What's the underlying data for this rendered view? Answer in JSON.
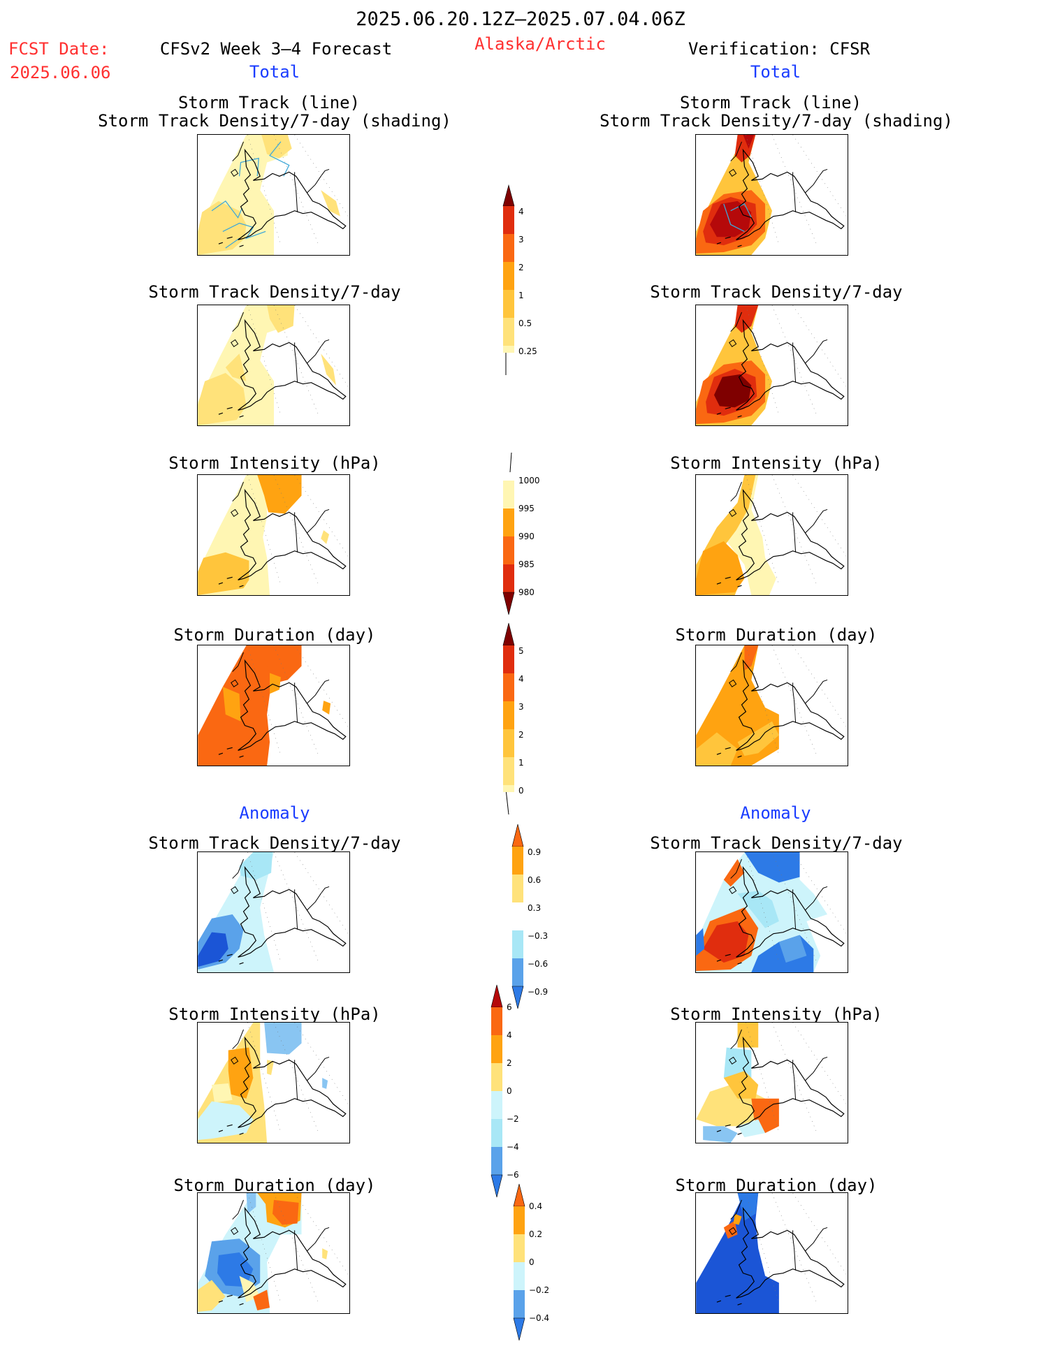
{
  "header": {
    "period": "2025.06.20.12Z–2025.07.04.06Z",
    "fcst_label": "FCST Date:",
    "fcst_date": "2025.06.06",
    "model": "CFSv2 Week 3–4 Forecast",
    "region": "Alaska/Arctic",
    "verification": "Verification: CFSR",
    "left_total": "Total",
    "right_total": "Total",
    "left_anomaly": "Anomaly",
    "right_anomaly": "Anomaly"
  },
  "panel_titles": {
    "track_line": "Storm Track (line)",
    "track_shading": "Storm Track Density/7-day (shading)",
    "density": "Storm Track Density/7-day",
    "intensity": "Storm Intensity (hPa)",
    "duration": "Storm Duration (day)"
  },
  "colorbars": {
    "density_total": [
      "4",
      "3",
      "2",
      "1",
      "0.5",
      "0.25"
    ],
    "intensity_total": [
      "1000",
      "995",
      "990",
      "985",
      "980"
    ],
    "duration_total": [
      "5",
      "4",
      "3",
      "2",
      "1",
      "0"
    ],
    "density_anom": [
      "0.9",
      "0.6",
      "0.3",
      "−0.3",
      "−0.6",
      "−0.9"
    ],
    "intensity_anom": [
      "6",
      "4",
      "2",
      "0",
      "−2",
      "−4",
      "−6"
    ],
    "duration_anom": [
      "0.4",
      "0.2",
      "0",
      "−0.2",
      "−0.4"
    ]
  },
  "colors": {
    "warm": [
      "#fff6b3",
      "#ffe27a",
      "#ffc53c",
      "#ffa311",
      "#fa6812",
      "#e02d0e",
      "#b5090a",
      "#7f0000"
    ],
    "cool": [
      "#cdf4fb",
      "#a8e7f6",
      "#89c5f2",
      "#5aa2ea",
      "#2d7ae6",
      "#1b55d6"
    ],
    "track_line": "#3fa8d8",
    "header_red": "#ff3030",
    "header_blue": "#1a3cff"
  }
}
